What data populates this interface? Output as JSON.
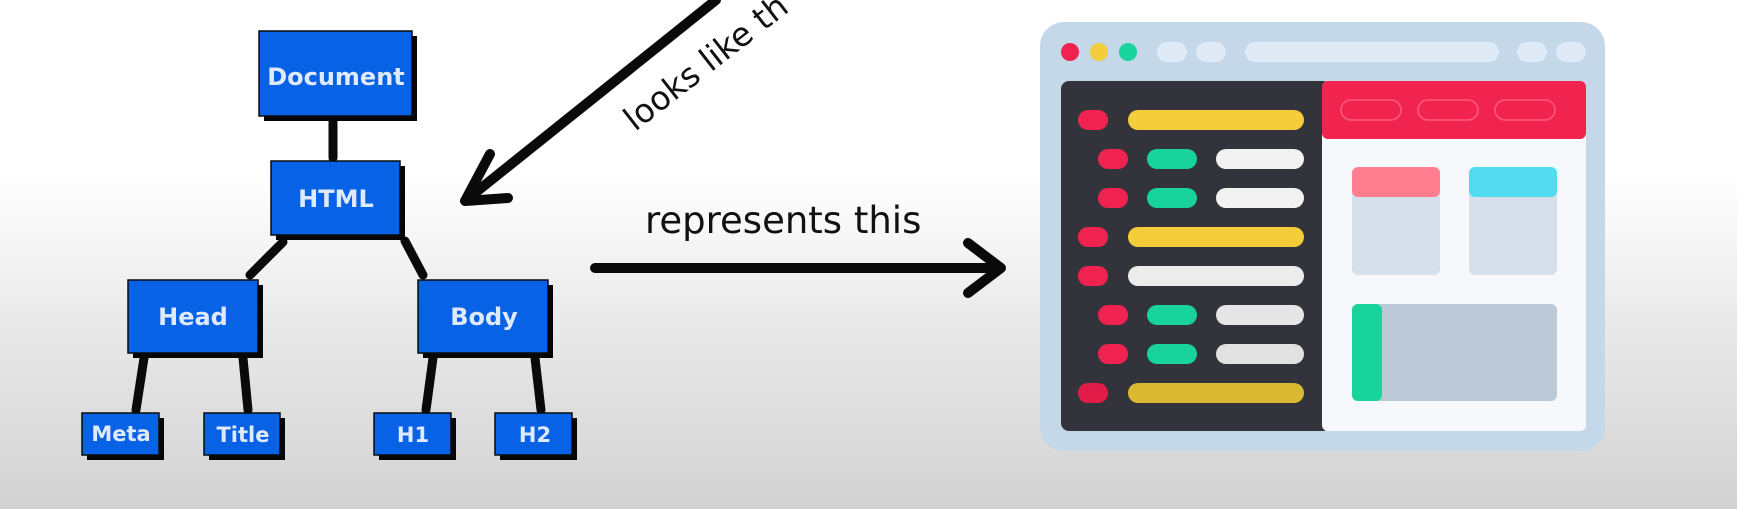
{
  "tree": {
    "document_label": "Document",
    "html_label": "HTML",
    "head_label": "Head",
    "body_label": "Body",
    "meta_label": "Meta",
    "title_label": "Title",
    "h1_label": "H1",
    "h2_label": "H2"
  },
  "annotations": {
    "looks_like_label": "looks like th",
    "represents_label": "represents this"
  },
  "colors": {
    "node_fill": "#0762e6",
    "node_text": "#dfe9ff",
    "browser_frame": "#c5d8ea",
    "code_panel": "#33333b",
    "accent_red": "#f0224f",
    "accent_yellow": "#f4cd3b",
    "accent_green": "#18d39c",
    "accent_pink": "#ff7f91",
    "accent_cyan": "#53dcf0"
  }
}
